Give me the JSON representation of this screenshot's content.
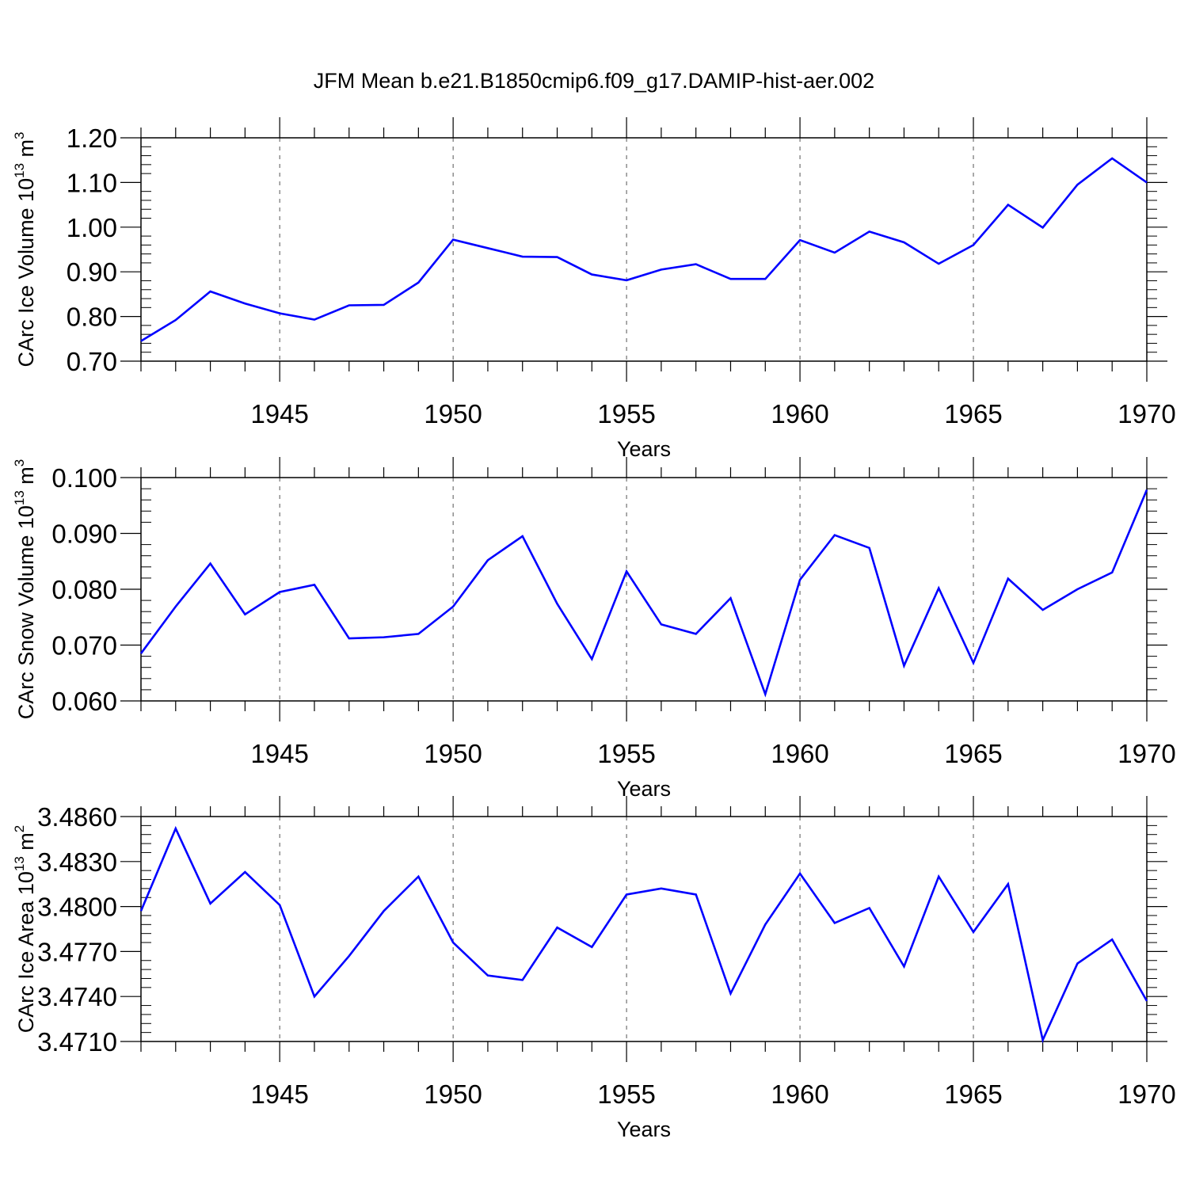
{
  "title": "JFM Mean b.e21.B1850cmip6.f09_g17.DAMIP-hist-aer.002",
  "colors": {
    "line": "#0000ff",
    "axis": "#000000",
    "grid": "#555555"
  },
  "chart_data": [
    {
      "type": "line",
      "ylabel": "CArc Ice Volume 10",
      "ylabel_sup": "13",
      "ylabel_unit": " m",
      "ylabel_unit_sup": "3",
      "xlabel": "Years",
      "xlim": [
        1941,
        1970
      ],
      "ylim": [
        0.7,
        1.2
      ],
      "xticks": [
        1945,
        1950,
        1955,
        1960,
        1965,
        1970
      ],
      "yticks": [
        "0.70",
        "0.80",
        "0.90",
        "1.00",
        "1.10",
        "1.20"
      ],
      "grid": "x-dashed",
      "x": [
        1941,
        1942,
        1943,
        1944,
        1945,
        1946,
        1947,
        1948,
        1949,
        1950,
        1951,
        1952,
        1953,
        1954,
        1955,
        1956,
        1957,
        1958,
        1959,
        1960,
        1961,
        1962,
        1963,
        1964,
        1965,
        1966,
        1967,
        1968,
        1969,
        1970
      ],
      "series": [
        {
          "values": [
            0.745,
            0.792,
            0.856,
            0.829,
            0.807,
            0.793,
            0.825,
            0.826,
            0.876,
            0.972,
            0.953,
            0.934,
            0.933,
            0.894,
            0.881,
            0.905,
            0.917,
            0.884,
            0.884,
            0.971,
            0.943,
            0.99,
            0.966,
            0.918,
            0.96,
            1.05,
            0.999,
            1.095,
            1.154,
            1.1
          ]
        }
      ]
    },
    {
      "type": "line",
      "ylabel": "CArc Snow Volume 10",
      "ylabel_sup": "13",
      "ylabel_unit": " m",
      "ylabel_unit_sup": "3",
      "xlabel": "Years",
      "xlim": [
        1941,
        1970
      ],
      "ylim": [
        0.06,
        0.1
      ],
      "xticks": [
        1945,
        1950,
        1955,
        1960,
        1965,
        1970
      ],
      "yticks": [
        "0.060",
        "0.070",
        "0.080",
        "0.090",
        "0.100"
      ],
      "grid": "x-dashed",
      "x": [
        1941,
        1942,
        1943,
        1944,
        1945,
        1946,
        1947,
        1948,
        1949,
        1950,
        1951,
        1952,
        1953,
        1954,
        1955,
        1956,
        1957,
        1958,
        1959,
        1960,
        1961,
        1962,
        1963,
        1964,
        1965,
        1966,
        1967,
        1968,
        1969,
        1970
      ],
      "series": [
        {
          "values": [
            0.0685,
            0.0769,
            0.0846,
            0.0755,
            0.0795,
            0.0808,
            0.0712,
            0.0714,
            0.072,
            0.0769,
            0.0852,
            0.0895,
            0.0774,
            0.0675,
            0.0832,
            0.0737,
            0.072,
            0.0784,
            0.0612,
            0.0817,
            0.0897,
            0.0874,
            0.0663,
            0.0802,
            0.0668,
            0.0819,
            0.0763,
            0.08,
            0.083,
            0.0978
          ]
        }
      ]
    },
    {
      "type": "line",
      "ylabel": "CArc Ice Area 10",
      "ylabel_sup": "13",
      "ylabel_unit": " m",
      "ylabel_unit_sup": "2",
      "xlabel": "Years",
      "xlim": [
        1941,
        1970
      ],
      "ylim": [
        3.471,
        3.486
      ],
      "xticks": [
        1945,
        1950,
        1955,
        1960,
        1965,
        1970
      ],
      "yticks": [
        "3.4710",
        "3.4740",
        "3.4770",
        "3.4800",
        "3.4830",
        "3.4860"
      ],
      "grid": "x-dashed",
      "x": [
        1941,
        1942,
        1943,
        1944,
        1945,
        1946,
        1947,
        1948,
        1949,
        1950,
        1951,
        1952,
        1953,
        1954,
        1955,
        1956,
        1957,
        1958,
        1959,
        1960,
        1961,
        1962,
        1963,
        1964,
        1965,
        1966,
        1967,
        1968,
        1969,
        1970
      ],
      "series": [
        {
          "values": [
            3.4797,
            3.4852,
            3.4802,
            3.4823,
            3.4801,
            3.474,
            3.4767,
            3.4797,
            3.482,
            3.4776,
            3.4754,
            3.4751,
            3.4786,
            3.4773,
            3.4808,
            3.4812,
            3.4808,
            3.4742,
            3.4788,
            3.4822,
            3.4789,
            3.4799,
            3.476,
            3.482,
            3.4783,
            3.4815,
            3.4711,
            3.4762,
            3.4778,
            3.4737
          ]
        }
      ]
    }
  ]
}
